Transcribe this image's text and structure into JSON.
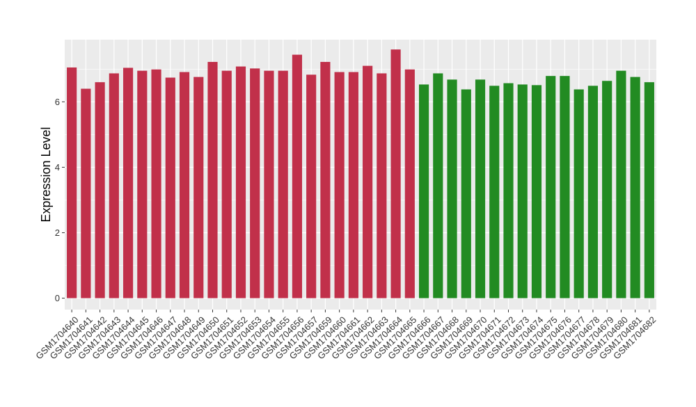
{
  "chart_data": {
    "type": "bar",
    "title": "",
    "xlabel": "",
    "ylabel": "Expression Level",
    "ylim": [
      -0.35,
      7.9
    ],
    "yticks": [
      0,
      2,
      4,
      6
    ],
    "grid": true,
    "legend": "none",
    "colors": {
      "panel": "#ebebeb",
      "grid": "#ffffff",
      "group1": "#c1304a",
      "group2": "#228b22",
      "text": "#000000",
      "tick": "#333333"
    },
    "categories": [
      "GSM1704640",
      "GSM1704641",
      "GSM1704642",
      "GSM1704643",
      "GSM1704644",
      "GSM1704645",
      "GSM1704646",
      "GSM1704647",
      "GSM1704648",
      "GSM1704649",
      "GSM1704650",
      "GSM1704651",
      "GSM1704652",
      "GSM1704653",
      "GSM1704654",
      "GSM1704655",
      "GSM1704656",
      "GSM1704657",
      "GSM1704659",
      "GSM1704660",
      "GSM1704661",
      "GSM1704662",
      "GSM1704663",
      "GSM1704664",
      "GSM1704665",
      "GSM1704666",
      "GSM1704667",
      "GSM1704668",
      "GSM1704669",
      "GSM1704670",
      "GSM1704671",
      "GSM1704672",
      "GSM1704673",
      "GSM1704674",
      "GSM1704675",
      "GSM1704676",
      "GSM1704677",
      "GSM1704678",
      "GSM1704679",
      "GSM1704680",
      "GSM1704681",
      "GSM1704682"
    ],
    "values": [
      7.05,
      6.4,
      6.6,
      6.87,
      7.04,
      6.95,
      6.99,
      6.74,
      6.91,
      6.76,
      7.22,
      6.95,
      7.08,
      7.02,
      6.95,
      6.95,
      7.44,
      6.83,
      7.22,
      6.91,
      6.91,
      7.1,
      6.87,
      7.6,
      6.99,
      6.53,
      6.87,
      6.68,
      6.38,
      6.68,
      6.49,
      6.57,
      6.53,
      6.51,
      6.79,
      6.79,
      6.38,
      6.49,
      6.64,
      6.95,
      6.76,
      6.6
    ],
    "groups": [
      1,
      1,
      1,
      1,
      1,
      1,
      1,
      1,
      1,
      1,
      1,
      1,
      1,
      1,
      1,
      1,
      1,
      1,
      1,
      1,
      1,
      1,
      1,
      1,
      1,
      2,
      2,
      2,
      2,
      2,
      2,
      2,
      2,
      2,
      2,
      2,
      2,
      2,
      2,
      2,
      2,
      2
    ]
  }
}
